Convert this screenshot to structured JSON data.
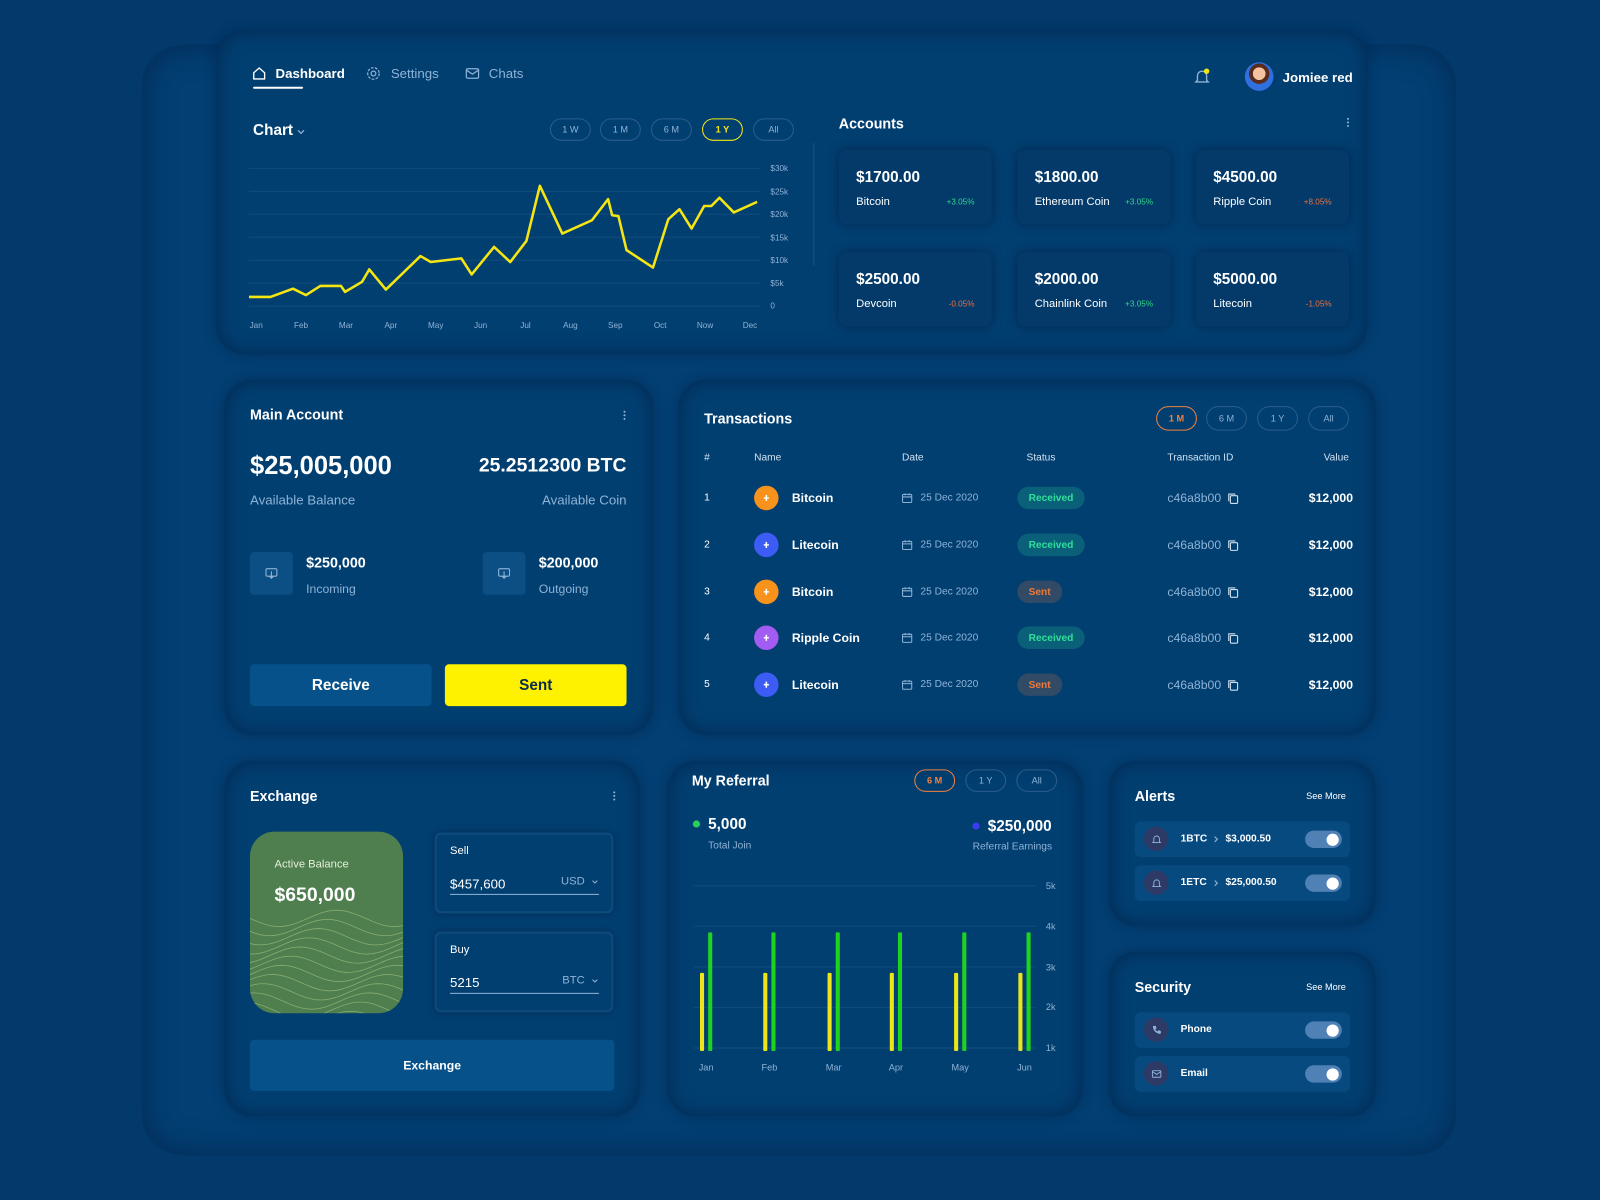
{
  "nav": {
    "items": [
      "Dashboard",
      "Settings",
      "Chats"
    ],
    "user": "Jomiee red"
  },
  "chart_data": [
    {
      "type": "line",
      "title": "Chart",
      "ranges": [
        "1 W",
        "1 M",
        "6 M",
        "1 Y",
        "All"
      ],
      "categories": [
        "Jan",
        "Feb",
        "Mar",
        "Apr",
        "May",
        "Jun",
        "Jul",
        "Aug",
        "Sep",
        "Oct",
        "Now",
        "Dec"
      ],
      "x": [
        -0.16,
        0.32,
        0.82,
        1.11,
        1.43,
        1.89,
        1.98,
        2.36,
        2.52,
        2.89,
        3.66,
        3.89,
        4.57,
        4.8,
        5.3,
        5.66,
        6.02,
        6.32,
        6.82,
        7.48,
        7.84,
        7.93,
        8.07,
        8.25,
        8.84,
        9.18,
        9.43,
        9.7,
        9.98,
        10.14,
        10.32,
        10.64,
        11.16
      ],
      "values": [
        2000,
        2000,
        3800,
        2400,
        4400,
        4400,
        3100,
        5300,
        8000,
        3600,
        10900,
        9600,
        10400,
        6900,
        12900,
        9600,
        14200,
        26200,
        15800,
        18700,
        23300,
        19800,
        19600,
        12200,
        8400,
        18900,
        21100,
        16900,
        21800,
        21800,
        23600,
        20400,
        22700
      ],
      "color": "#f5e612",
      "xlim": [
        -0.16,
        11.16
      ],
      "ylim": [
        0,
        30000
      ],
      "yticks": [
        0,
        {
          "value": 5000,
          "label": "$5k"
        },
        {
          "value": 10000,
          "label": "$10k"
        },
        {
          "value": 15000,
          "label": "$15k"
        },
        {
          "value": 20000,
          "label": "$20k"
        },
        {
          "value": 25000,
          "label": "$25k"
        },
        {
          "value": 30000,
          "label": "$30k"
        }
      ],
      "grid": true
    },
    {
      "type": "bar",
      "title": "My Referral",
      "ranges": [
        "6 M",
        "1 Y",
        "All"
      ],
      "stats": [
        {
          "value": "5,000",
          "label": "Total Join",
          "color": "#27d05a"
        },
        {
          "value": "$250,000",
          "label": "Referral Earnings",
          "color": "#3b3bf2"
        }
      ],
      "categories": [
        "Jan",
        "Feb",
        "Mar",
        "Apr",
        "May",
        "Jun"
      ],
      "series": [
        {
          "color": "#eee41a",
          "values": [
            2850,
            2850,
            2850,
            2850,
            2850,
            2850
          ]
        },
        {
          "color": "#1ed41e",
          "values": [
            3850,
            3850,
            3850,
            3850,
            3850,
            3850
          ]
        }
      ],
      "ylim": [
        1000,
        5000
      ],
      "yticks": [
        {
          "value": 1000,
          "label": "1k"
        },
        {
          "value": 2000,
          "label": "2k"
        },
        {
          "value": 3000,
          "label": "3k"
        },
        {
          "value": 4000,
          "label": "4k"
        },
        {
          "value": 5000,
          "label": "5k"
        }
      ],
      "grid": true
    }
  ],
  "accounts": {
    "title": "Accounts",
    "items": [
      {
        "amount": "$1700.00",
        "name": "Bitcoin",
        "change": "+3.05%",
        "color": "#2fd98a"
      },
      {
        "amount": "$1800.00",
        "name": "Ethereum Coin",
        "change": "+3.05%",
        "color": "#2fd98a"
      },
      {
        "amount": "$4500.00",
        "name": "Ripple Coin",
        "change": "+8.05%",
        "color": "#f0703c"
      },
      {
        "amount": "$2500.00",
        "name": "Devcoin",
        "change": "-0.05%",
        "color": "#f0703c"
      },
      {
        "amount": "$2000.00",
        "name": "Chainlink Coin",
        "change": "+3.05%",
        "color": "#2fd98a"
      },
      {
        "amount": "$5000.00",
        "name": "Litecoin",
        "change": "-1.05%",
        "color": "#f0703c"
      }
    ]
  },
  "main_account": {
    "title": "Main Account",
    "balance": "$25,005,000",
    "balance_label": "Available Balance",
    "coin": "25.2512300 BTC",
    "coin_label": "Available Coin",
    "incoming": {
      "amount": "$250,000",
      "label": "Incoming"
    },
    "outgoing": {
      "amount": "$200,000",
      "label": "Outgoing"
    },
    "buttons": [
      "Receive",
      "Sent"
    ]
  },
  "transactions": {
    "title": "Transactions",
    "ranges": [
      "1 M",
      "6 M",
      "1 Y",
      "All"
    ],
    "columns": [
      "#",
      "Name",
      "Date",
      "Status",
      "Transaction ID",
      "Value"
    ],
    "rows": [
      {
        "no": 1,
        "name": "Bitcoin",
        "date": "25 Dec 2020",
        "status": "Received",
        "id": "c46a8b00",
        "value": "$12,000",
        "color": "#f7931a",
        "status_color": "#2fe09a"
      },
      {
        "no": 2,
        "name": "Litecoin",
        "date": "25 Dec 2020",
        "status": "Received",
        "id": "c46a8b00",
        "value": "$12,000",
        "color": "#3d5cf5",
        "status_color": "#2fe09a"
      },
      {
        "no": 3,
        "name": "Bitcoin",
        "date": "25 Dec 2020",
        "status": "Sent",
        "id": "c46a8b00",
        "value": "$12,000",
        "color": "#f7931a",
        "status_color": "#f07a3c"
      },
      {
        "no": 4,
        "name": "Ripple Coin",
        "date": "25 Dec 2020",
        "status": "Received",
        "id": "c46a8b00",
        "value": "$12,000",
        "color": "#a35cf2",
        "status_color": "#2fe09a"
      },
      {
        "no": 5,
        "name": "Litecoin",
        "date": "25 Dec 2020",
        "status": "Sent",
        "id": "c46a8b00",
        "value": "$12,000",
        "color": "#3d5cf5",
        "status_color": "#f07a3c"
      }
    ]
  },
  "exchange": {
    "title": "Exchange",
    "card_label": "Active Balance",
    "card_amount": "$650,000",
    "sell": {
      "label": "Sell",
      "value": "$457,600",
      "unit": "USD"
    },
    "buy": {
      "label": "Buy",
      "value": "5215",
      "unit": "BTC"
    },
    "button": "Exchange"
  },
  "alerts": {
    "title": "Alerts",
    "link": "See More",
    "items": [
      {
        "from": "1BTC",
        "to": "$3,000.50"
      },
      {
        "from": "1ETC",
        "to": "$25,000.50"
      }
    ]
  },
  "security": {
    "title": "Security",
    "link": "See More",
    "items": [
      "Phone",
      "Email"
    ]
  }
}
